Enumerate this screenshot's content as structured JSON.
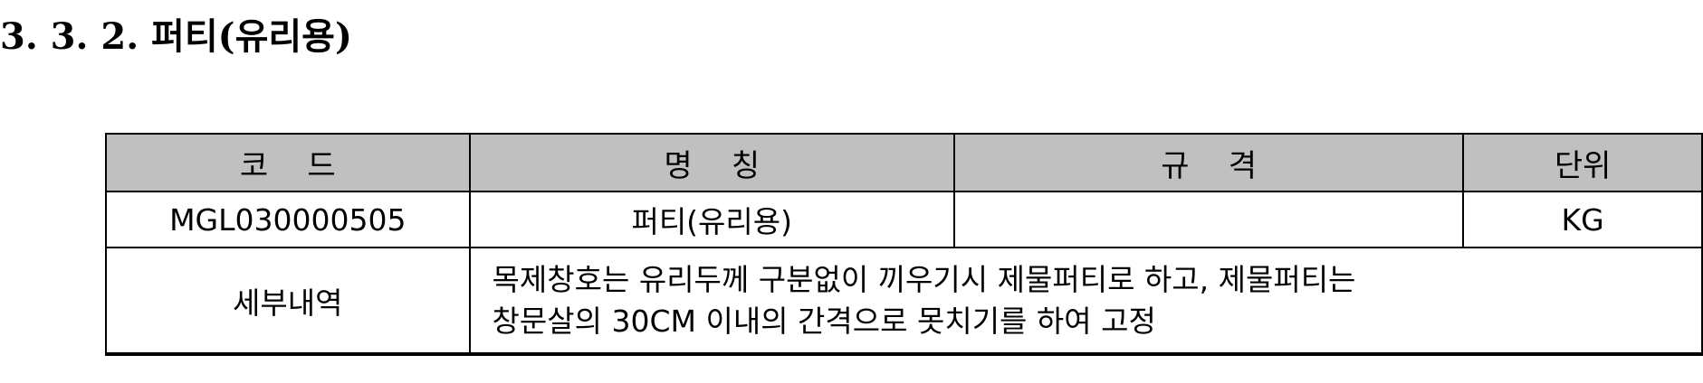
{
  "heading": "3. 3. 2. 퍼티(유리용)",
  "table": {
    "headers": [
      "코    드",
      "명    칭",
      "규    격",
      "단위"
    ],
    "row": {
      "code": "MGL030000505",
      "name": "퍼티(유리용)",
      "spec": "",
      "unit": "KG"
    },
    "detail": {
      "label": "세부내역",
      "lines": [
        "목제창호는 유리두께 구분없이 끼우기시 제물퍼티로 하고, 제물퍼티는",
        "창문살의 30CM 이내의 간격으로 못치기를 하여 고정"
      ]
    }
  }
}
